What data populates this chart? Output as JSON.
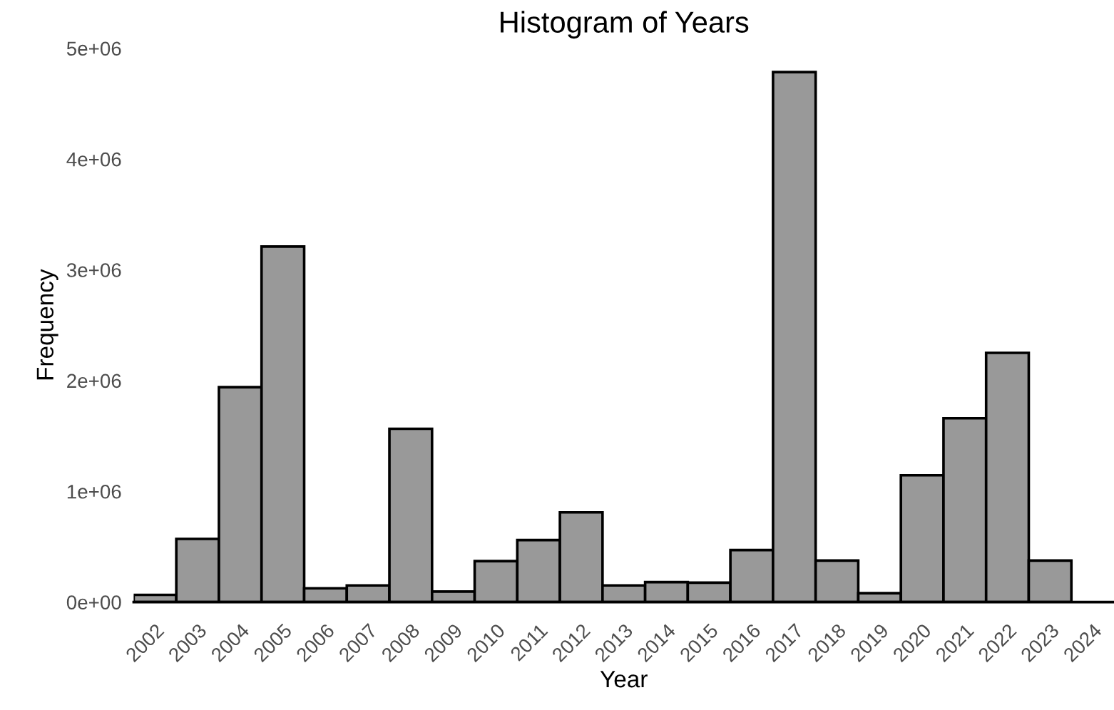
{
  "chart_data": {
    "type": "histogram",
    "title": "Histogram of Years",
    "xlabel": "Year",
    "ylabel": "Frequency",
    "bins": [
      2001.5,
      2002.5,
      2003.5,
      2004.5,
      2005.5,
      2006.5,
      2007.5,
      2008.5,
      2009.5,
      2010.5,
      2011.5,
      2012.5,
      2013.5,
      2014.5,
      2015.5,
      2016.5,
      2017.5,
      2018.5,
      2019.5,
      2020.5,
      2021.5,
      2022.5,
      2023.5
    ],
    "values": [
      65000,
      570000,
      1940000,
      3210000,
      125000,
      150000,
      1565000,
      95000,
      370000,
      560000,
      810000,
      150000,
      180000,
      175000,
      470000,
      4785000,
      375000,
      80000,
      1145000,
      1660000,
      2250000,
      375000
    ],
    "color": "#999999",
    "xlim": [
      2001.5,
      2024.5
    ],
    "xticks": [
      2002,
      2003,
      2004,
      2005,
      2006,
      2007,
      2008,
      2009,
      2010,
      2011,
      2012,
      2013,
      2014,
      2015,
      2016,
      2017,
      2018,
      2019,
      2020,
      2021,
      2022,
      2023,
      2024
    ],
    "ylim": [
      0,
      5000000
    ],
    "yticks": [
      {
        "value": 0,
        "label": "0e+00"
      },
      {
        "value": 1000000,
        "label": "1e+06"
      },
      {
        "value": 2000000,
        "label": "2e+06"
      },
      {
        "value": 3000000,
        "label": "3e+06"
      },
      {
        "value": 4000000,
        "label": "4e+06"
      },
      {
        "value": 5000000,
        "label": "5e+06"
      }
    ],
    "grid": false
  }
}
